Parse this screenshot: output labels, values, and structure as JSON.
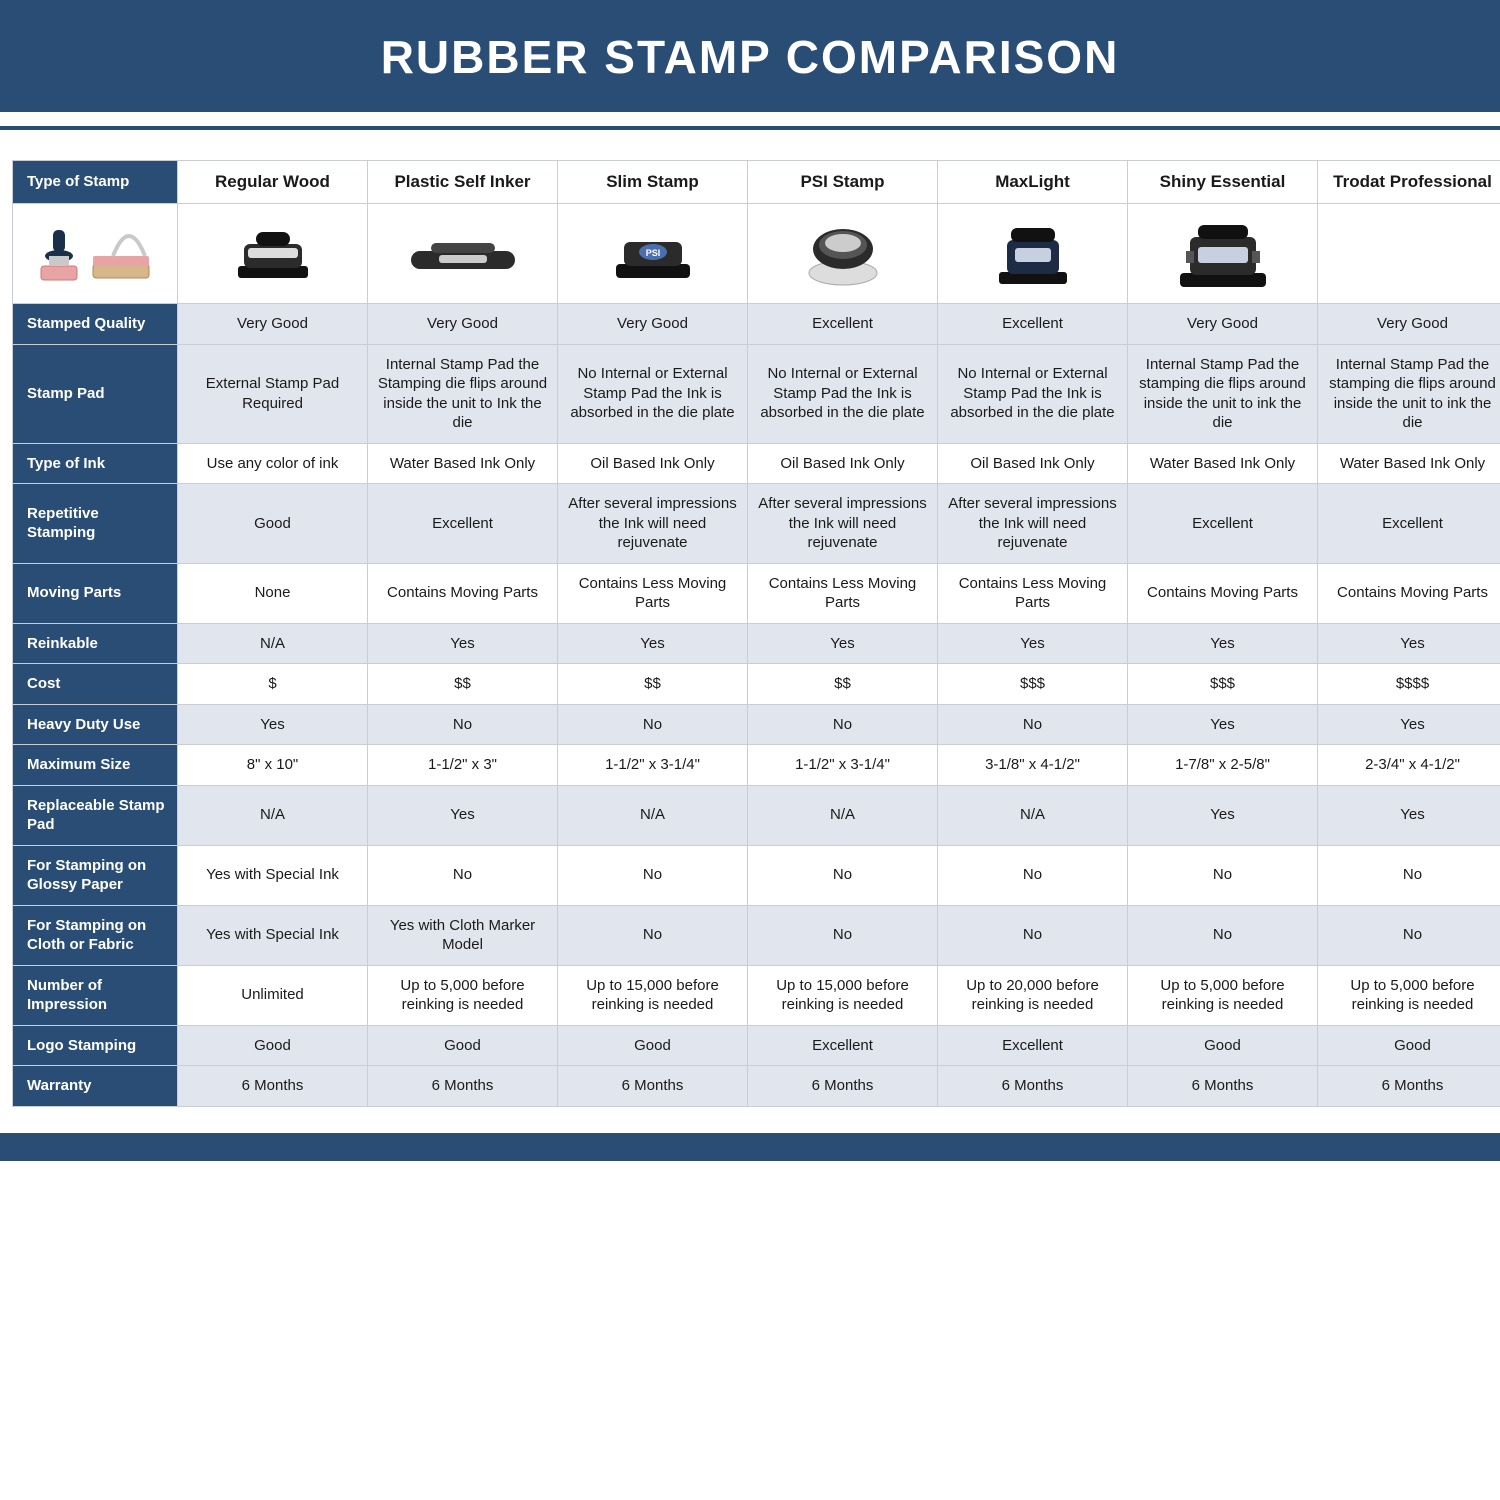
{
  "title": "RUBBER STAMP COMPARISON",
  "colors": {
    "brand": "#2a4d76",
    "shade": "#e1e6ee",
    "border": "#c9ced6",
    "text": "#1a1a1a",
    "white": "#ffffff"
  },
  "columns": [
    "Regular Wood",
    "Plastic Self Inker",
    "Slim Stamp",
    "PSI Stamp",
    "MaxLight",
    "Shiny Essential",
    "Trodat Professional"
  ],
  "rows": [
    {
      "label": "Type of Stamp",
      "imageRow": true
    },
    {
      "label": "Stamped Quality",
      "cells": [
        "Very Good",
        "Very Good",
        "Very Good",
        "Excellent",
        "Excellent",
        "Very Good",
        "Very Good"
      ]
    },
    {
      "label": "Stamp Pad",
      "cells": [
        "External Stamp Pad Required",
        "Internal Stamp Pad the Stamping die flips around inside the unit to Ink the die",
        "No Internal or External Stamp Pad the Ink is absorbed in the die plate",
        "No Internal or External Stamp Pad the Ink is absorbed in the die plate",
        "No Internal or External Stamp Pad the Ink is absorbed in the die plate",
        "Internal Stamp Pad the stamping die flips around inside the unit to ink the die",
        "Internal Stamp Pad the stamping die flips around inside the unit to ink the die"
      ]
    },
    {
      "label": "Type of Ink",
      "cells": [
        "Use any color of ink",
        "Water Based Ink Only",
        "Oil Based Ink Only",
        "Oil Based Ink Only",
        "Oil Based Ink Only",
        "Water Based Ink Only",
        "Water Based Ink Only"
      ]
    },
    {
      "label": "Repetitive Stamping",
      "cells": [
        "Good",
        "Excellent",
        "After several impressions the Ink will need rejuvenate",
        "After several impressions the Ink will need rejuvenate",
        "After several impressions the Ink will need rejuvenate",
        "Excellent",
        "Excellent"
      ]
    },
    {
      "label": "Moving Parts",
      "cells": [
        "None",
        "Contains Moving Parts",
        "Contains Less Moving Parts",
        "Contains Less Moving Parts",
        "Contains Less Moving Parts",
        "Contains Moving Parts",
        "Contains Moving Parts"
      ]
    },
    {
      "label": "Reinkable",
      "cells": [
        "N/A",
        "Yes",
        "Yes",
        "Yes",
        "Yes",
        "Yes",
        "Yes"
      ]
    },
    {
      "label": "Cost",
      "cells": [
        "$",
        "$$",
        "$$",
        "$$",
        "$$$",
        "$$$",
        "$$$$"
      ]
    },
    {
      "label": "Heavy Duty Use",
      "cells": [
        "Yes",
        "No",
        "No",
        "No",
        "No",
        "Yes",
        "Yes"
      ]
    },
    {
      "label": "Maximum Size",
      "cells": [
        "8\" x 10\"",
        "1-1/2\" x 3\"",
        "1-1/2\" x 3-1/4\"",
        "1-1/2\" x 3-1/4\"",
        "3-1/8\" x 4-1/2\"",
        "1-7/8\" x 2-5/8\"",
        "2-3/4\" x 4-1/2\""
      ]
    },
    {
      "label": "Replaceable Stamp Pad",
      "cells": [
        "N/A",
        "Yes",
        "N/A",
        "N/A",
        "N/A",
        "Yes",
        "Yes"
      ]
    },
    {
      "label": "For Stamping on Glossy Paper",
      "cells": [
        "Yes with Special Ink",
        "No",
        "No",
        "No",
        "No",
        "No",
        "No"
      ]
    },
    {
      "label": "For Stamping on Cloth or Fabric",
      "cells": [
        "Yes with Special Ink",
        "Yes with Cloth Marker Model",
        "No",
        "No",
        "No",
        "No",
        "No"
      ]
    },
    {
      "label": "Number of Impression",
      "cells": [
        "Unlimited",
        "Up to 5,000 before reinking is needed",
        "Up to 15,000 before reinking is needed",
        "Up to 15,000 before reinking is needed",
        "Up to 20,000 before reinking is needed",
        "Up to 5,000 before reinking is needed",
        "Up to 5,000 before reinking is needed"
      ]
    },
    {
      "label": "Logo Stamping",
      "cells": [
        "Good",
        "Good",
        "Good",
        "Excellent",
        "Excellent",
        "Good",
        "Good"
      ]
    },
    {
      "label": "Warranty",
      "cells": [
        "6 Months",
        "6 Months",
        "6 Months",
        "6 Months",
        "6 Months",
        "6 Months",
        "6 Months"
      ]
    }
  ],
  "stampIcons": [
    "wood",
    "selfinker",
    "slim",
    "psi",
    "maxlight",
    "shiny",
    "trodat"
  ]
}
